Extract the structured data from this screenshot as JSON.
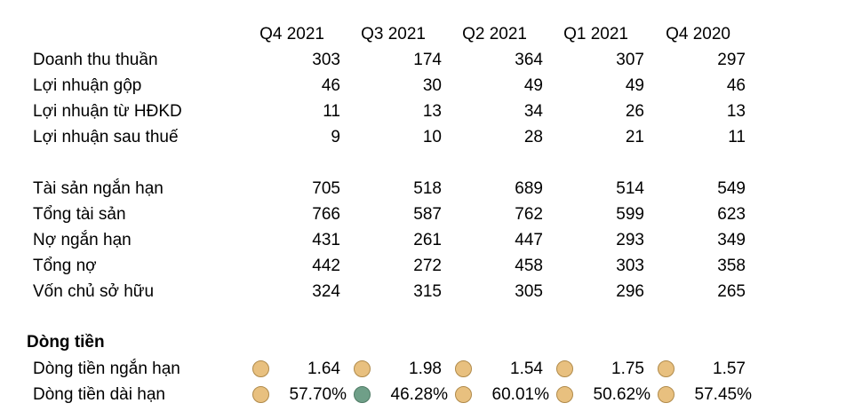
{
  "columns": [
    "Q4 2021",
    "Q3 2021",
    "Q2 2021",
    "Q1 2021",
    "Q4 2020"
  ],
  "income_rows": [
    {
      "label": "Doanh thu thuần",
      "values": [
        "303",
        "174",
        "364",
        "307",
        "297"
      ]
    },
    {
      "label": "Lợi nhuận gộp",
      "values": [
        "46",
        "30",
        "49",
        "49",
        "46"
      ]
    },
    {
      "label": "Lợi nhuận từ HĐKD",
      "values": [
        "11",
        "13",
        "34",
        "26",
        "13"
      ]
    },
    {
      "label": "Lợi nhuận sau thuế",
      "values": [
        "9",
        "10",
        "28",
        "21",
        "11"
      ]
    }
  ],
  "balance_rows": [
    {
      "label": "Tài sản ngắn hạn",
      "values": [
        "705",
        "518",
        "689",
        "514",
        "549"
      ]
    },
    {
      "label": "Tổng tài sản",
      "values": [
        "766",
        "587",
        "762",
        "599",
        "623"
      ]
    },
    {
      "label": "Nợ ngắn hạn",
      "values": [
        "431",
        "261",
        "447",
        "293",
        "349"
      ]
    },
    {
      "label": "Tổng nợ",
      "values": [
        "442",
        "272",
        "458",
        "303",
        "358"
      ]
    },
    {
      "label": "Vốn chủ sở hữu",
      "values": [
        "324",
        "315",
        "305",
        "296",
        "265"
      ]
    }
  ],
  "cashflow": {
    "title": "Dòng tiền",
    "rows": [
      {
        "label": "Dòng tiền ngắn hạn",
        "values": [
          "1.64",
          "1.98",
          "1.54",
          "1.75",
          "1.57"
        ],
        "indicators": [
          "amber",
          "amber",
          "amber",
          "amber",
          "amber"
        ]
      },
      {
        "label": "Dòng tiền dài hạn",
        "values": [
          "57.70%",
          "46.28%",
          "60.01%",
          "50.62%",
          "57.45%"
        ],
        "indicators": [
          "amber",
          "green",
          "amber",
          "amber",
          "amber"
        ]
      }
    ]
  },
  "indicator_colors": {
    "amber": {
      "fill": "#E8C07F",
      "stroke": "#B08A4A"
    },
    "green": {
      "fill": "#6F9F88",
      "stroke": "#4E7A64"
    }
  }
}
